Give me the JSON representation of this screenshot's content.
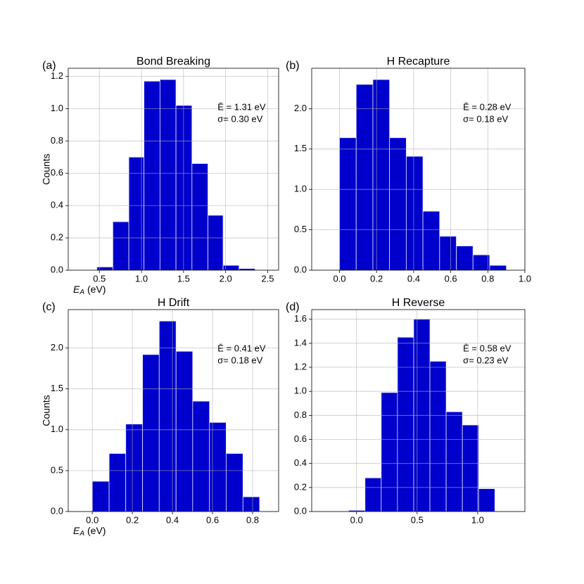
{
  "chart_data": [
    {
      "type": "histogram",
      "panel_label": "(a)",
      "title": "Bond Breaking",
      "ylabel": "Counts",
      "xlabel": {
        "symbol": "E",
        "subscript": "A",
        "unit": "(eV)"
      },
      "bins": [
        0.47,
        0.66,
        0.85,
        1.03,
        1.22,
        1.41,
        1.6,
        1.79,
        1.97,
        2.16,
        2.35
      ],
      "values": [
        0.02,
        0.3,
        0.7,
        1.17,
        1.18,
        1.02,
        0.66,
        0.34,
        0.03,
        0.01
      ],
      "color": "#0000cc",
      "grid": true,
      "xlim": [
        0.13,
        2.63
      ],
      "ylim": [
        0,
        1.25
      ],
      "xticks": [
        0.5,
        {
          "value": 1,
          "label": "1.0"
        },
        1.5,
        {
          "value": 2,
          "label": "2.0"
        },
        2.5
      ],
      "yticks": [
        {
          "value": 0,
          "label": "0.0"
        },
        0.2,
        0.4,
        0.6,
        0.8,
        {
          "value": 1,
          "label": "1.0"
        },
        1.2
      ],
      "annotations": [
        "Ē = 1.31 eV",
        "σ= 0.30 eV"
      ]
    },
    {
      "type": "histogram",
      "panel_label": "(b)",
      "title": "H Recapture",
      "bins": [
        0,
        0.09,
        0.18,
        0.27,
        0.36,
        0.45,
        0.54,
        0.63,
        0.72,
        0.81,
        0.9
      ],
      "values": [
        1.64,
        2.3,
        2.36,
        1.64,
        1.41,
        0.73,
        0.42,
        0.3,
        0.19,
        0.06
      ],
      "color": "#0000cc",
      "grid": true,
      "xlim": [
        -0.15,
        1.0
      ],
      "ylim": [
        0,
        2.5
      ],
      "xticks": [
        {
          "value": 0,
          "label": "0.0"
        },
        0.2,
        0.4,
        0.6,
        0.8,
        {
          "value": 1,
          "label": "1.0"
        }
      ],
      "yticks": [
        {
          "value": 0,
          "label": "0.0"
        },
        0.5,
        {
          "value": 1,
          "label": "1.0"
        },
        1.5,
        {
          "value": 2,
          "label": "2.0"
        }
      ],
      "annotations": [
        "Ē = 0.28 eV",
        "σ= 0.18 eV"
      ]
    },
    {
      "type": "histogram",
      "panel_label": "(c)",
      "title": "H Drift",
      "ylabel": "Counts",
      "xlabel": {
        "symbol": "E",
        "subscript": "A",
        "unit": "(eV)"
      },
      "bins": [
        0,
        0.084,
        0.167,
        0.251,
        0.334,
        0.418,
        0.501,
        0.585,
        0.668,
        0.752,
        0.835
      ],
      "values": [
        0.37,
        0.71,
        1.07,
        1.92,
        2.33,
        1.96,
        1.35,
        1.09,
        0.71,
        0.18
      ],
      "color": "#0000cc",
      "grid": true,
      "xlim": [
        -0.12,
        0.93
      ],
      "ylim": [
        0,
        2.47
      ],
      "xticks": [
        {
          "value": 0,
          "label": "0.0"
        },
        0.2,
        0.4,
        0.6,
        0.8
      ],
      "yticks": [
        {
          "value": 0,
          "label": "0.0"
        },
        0.5,
        {
          "value": 1,
          "label": "1.0"
        },
        1.5,
        {
          "value": 2,
          "label": "2.0"
        }
      ],
      "annotations": [
        "Ē = 0.41 eV",
        "σ= 0.18 eV"
      ]
    },
    {
      "type": "histogram",
      "panel_label": "(d)",
      "title": "H Reverse",
      "bins": [
        -0.064,
        0.07,
        0.204,
        0.338,
        0.472,
        0.606,
        0.74,
        0.874,
        1.008,
        1.142
      ],
      "values": [
        0.01,
        0.28,
        0.99,
        1.45,
        1.6,
        1.25,
        0.83,
        0.72,
        0.19
      ],
      "color": "#0000cc",
      "grid": true,
      "xlim": [
        -0.37,
        1.39
      ],
      "ylim": [
        0,
        1.68
      ],
      "xticks": [
        {
          "value": 0,
          "label": "0.0"
        },
        0.5,
        {
          "value": 1,
          "label": "1.0"
        }
      ],
      "yticks": [
        {
          "value": 0,
          "label": "0.0"
        },
        0.2,
        0.4,
        0.6,
        0.8,
        {
          "value": 1,
          "label": "1.0"
        },
        1.2,
        1.4,
        1.6
      ],
      "annotations": [
        "Ē = 0.58 eV",
        "σ= 0.23 eV"
      ]
    }
  ]
}
